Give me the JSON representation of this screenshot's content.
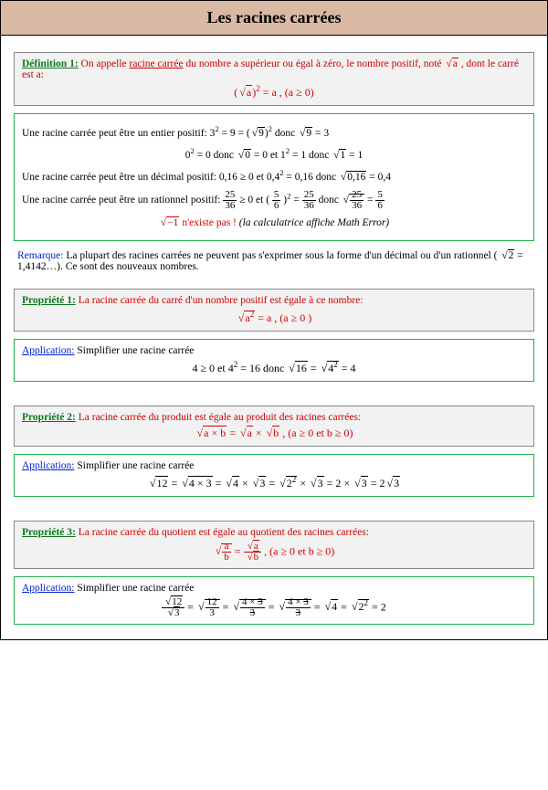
{
  "title": "Les racines carrées",
  "def1_label": "Définition 1:",
  "def1_text": " On appelle ",
  "def1_racine": "racine carrée",
  "def1_text2": " du nombre a supérieur ou égal à zéro, le nombre positif, noté ",
  "def1_sqrt_a": "a",
  "def1_text3": " , dont le carré est a:",
  "def1_formula_1": "(",
  "def1_formula_sqrt": "a",
  "def1_formula_2": ")",
  "def1_formula_eq": " = a  , (a ≥ 0)",
  "ex_line1a": "Une racine carrée peut être un entier positif:    3",
  "ex_line1b": " = 9 = (",
  "ex_line1_sqrt9": "9",
  "ex_line1c": ")",
  "ex_line1d": "   donc   ",
  "ex_line1_sqrt9b": "9",
  "ex_line1e": "  = 3",
  "ex_line2a": "0",
  "ex_line2b": " = 0   donc   ",
  "ex_line2_sqrt0": "0",
  "ex_line2c": "  = 0   et    1",
  "ex_line2d": " = 1   donc   ",
  "ex_line2_sqrt1": "1",
  "ex_line2e": "  = 1",
  "ex_line3a": "Une racine carrée peut être un décimal positif:   0,16 ≥ 0   et   0,4",
  "ex_line3b": " = 0,16  donc   ",
  "ex_line3_sqrt": "0,16",
  "ex_line3c": "  = 0,4",
  "ex_line4a": "Une racine carrée peut être un rationnel positif:   ",
  "ex_line4_frac1_num": "25",
  "ex_line4_frac1_den": "36",
  "ex_line4b": " ≥ 0   et   (",
  "ex_line4_frac2_num": "5",
  "ex_line4_frac2_den": "6",
  "ex_line4c": ")",
  "ex_line4d": " = ",
  "ex_line4_frac3_num": "25",
  "ex_line4_frac3_den": "36",
  "ex_line4e": "   donc   ",
  "ex_line4_sqrtfrac_num": "25",
  "ex_line4_sqrtfrac_den": "36",
  "ex_line4f": " = ",
  "ex_line4_frac4_num": "5",
  "ex_line4_frac4_den": "6",
  "ex_err_sqrt": "−1",
  "ex_err_text": "  n'existe pas ! ",
  "ex_err_italic": "(la calculatrice affiche Math Error)",
  "remark_label": "Remarque:",
  "remark_text1": " La plupart des racines carrées ne peuvent pas s'exprimer sous la forme d'un décimal ou d'un rationnel ( ",
  "remark_sqrt2": "2",
  "remark_text2": "  = 1,4142…). Ce sont des nouveaux nombres.",
  "prop1_label": "Propriété 1:",
  "prop1_text": " La racine carrée du carré d'un nombre positif est égale à ce nombre:",
  "prop1_formula_sqrt": "a",
  "prop1_formula_eq": "  = a , (a ≥ 0 )",
  "app_label": "Application:",
  "app_text": " Simplifier une racine carrée",
  "app1_line_a": "4 ≥ 0   et   4",
  "app1_line_b": " = 16   donc   ",
  "app1_sqrt16": "16",
  "app1_line_c": " = ",
  "app1_sqrt4sq": "4",
  "app1_line_d": " = 4",
  "prop2_label": "Propriété 2:",
  "prop2_text": " La racine carrée du produit est égale au produit des racines carrées:",
  "prop2_sqrt_ab": "a × b",
  "prop2_eq": " = ",
  "prop2_sqrt_a": "a",
  "prop2_times": " × ",
  "prop2_sqrt_b": "b",
  "prop2_cond": " , (a ≥ 0  et  b ≥ 0)",
  "app2_sqrt12": "12",
  "app2_eq": " = ",
  "app2_sqrt4x3": "4 × 3",
  "app2_sqrt4": "4",
  "app2_x": " × ",
  "app2_sqrt3": "3",
  "app2_sqrt2sq": "2",
  "app2_eq2": " = 2 × ",
  "app2_eq3": " = 2",
  "prop3_label": "Propriété 3:",
  "prop3_text": " La racine carrée du quotient est égale au quotient des racines carrées:",
  "prop3_a": "a",
  "prop3_b": "b",
  "prop3_cond": " , (a ≥ 0  et  b ≥ 0)",
  "app3_s12": "12",
  "app3_s3": "3",
  "app3_n12": "12",
  "app3_d3": "3",
  "app3_4x3": "4 × ",
  "app3_3s": "3",
  "app3_sqrt4": "4",
  "app3_sqrt2sq": "2",
  "app3_eq2": " = 2"
}
